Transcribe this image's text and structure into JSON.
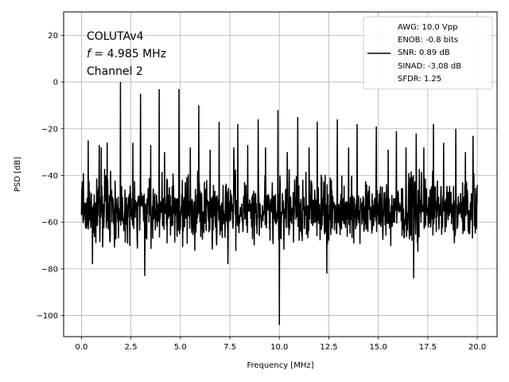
{
  "chart_data": {
    "type": "line",
    "xlabel": "Frequency [MHz]",
    "ylabel": "PSD [dB]",
    "xlim": [
      -0.9,
      21.0
    ],
    "ylim": [
      -109,
      30
    ],
    "x_ticks": [
      0.0,
      2.5,
      5.0,
      7.5,
      10.0,
      12.5,
      15.0,
      17.5,
      20.0
    ],
    "x_tick_labels": [
      "0.0",
      "2.5",
      "5.0",
      "7.5",
      "10.0",
      "12.5",
      "15.0",
      "17.5",
      "20.0"
    ],
    "y_ticks": [
      20,
      0,
      -20,
      -40,
      -60,
      -80,
      -100
    ],
    "y_tick_labels": [
      "20",
      "0",
      "−20",
      "−40",
      "−60",
      "−80",
      "−100"
    ],
    "grid": true,
    "annotation": {
      "line1": "COLUTAv4",
      "line2_var": "f",
      "line2_rest": " = 4.985 MHz",
      "line3": "Channel 2"
    },
    "legend": {
      "placement": "top-right",
      "entries": [
        "AWG: 10.0 Vpp",
        "ENOB: -0.8 bits",
        "SNR: 0.89 dB",
        "SINAD: -3.08 dB",
        "SFDR: 1.25"
      ]
    },
    "series": [
      {
        "color": "#000000",
        "noise_floor_db": -55,
        "noise_range_db": [
          -72,
          -38
        ],
        "spikes": [
          {
            "x": 0.0,
            "y": -57
          },
          {
            "x": 0.1,
            "y": -39
          },
          {
            "x": 0.2,
            "y": -61
          },
          {
            "x": 0.35,
            "y": -25
          },
          {
            "x": 0.55,
            "y": -78
          },
          {
            "x": 0.9,
            "y": -27
          },
          {
            "x": 1.0,
            "y": -28
          },
          {
            "x": 1.3,
            "y": -26
          },
          {
            "x": 1.97,
            "y": 0
          },
          {
            "x": 2.6,
            "y": -26
          },
          {
            "x": 2.98,
            "y": -5
          },
          {
            "x": 3.2,
            "y": -83
          },
          {
            "x": 3.5,
            "y": -27
          },
          {
            "x": 3.93,
            "y": -3
          },
          {
            "x": 4.2,
            "y": -30
          },
          {
            "x": 4.93,
            "y": -3
          },
          {
            "x": 5.5,
            "y": -28
          },
          {
            "x": 5.93,
            "y": -10
          },
          {
            "x": 6.5,
            "y": -29
          },
          {
            "x": 6.96,
            "y": -17
          },
          {
            "x": 7.4,
            "y": -78
          },
          {
            "x": 7.7,
            "y": -28
          },
          {
            "x": 7.9,
            "y": -18
          },
          {
            "x": 8.4,
            "y": -27
          },
          {
            "x": 8.93,
            "y": -16
          },
          {
            "x": 9.3,
            "y": -28
          },
          {
            "x": 9.93,
            "y": -12
          },
          {
            "x": 10.0,
            "y": -104
          },
          {
            "x": 10.4,
            "y": -30
          },
          {
            "x": 10.93,
            "y": -15
          },
          {
            "x": 11.5,
            "y": -28
          },
          {
            "x": 11.91,
            "y": -17
          },
          {
            "x": 12.4,
            "y": -82
          },
          {
            "x": 12.93,
            "y": -16
          },
          {
            "x": 13.5,
            "y": -28
          },
          {
            "x": 13.93,
            "y": -18
          },
          {
            "x": 14.9,
            "y": -19
          },
          {
            "x": 15.5,
            "y": -29
          },
          {
            "x": 15.92,
            "y": -21
          },
          {
            "x": 16.4,
            "y": -28
          },
          {
            "x": 16.78,
            "y": -84
          },
          {
            "x": 16.92,
            "y": -22
          },
          {
            "x": 17.3,
            "y": -28
          },
          {
            "x": 17.78,
            "y": -18
          },
          {
            "x": 18.3,
            "y": -26
          },
          {
            "x": 18.92,
            "y": -20
          },
          {
            "x": 19.4,
            "y": -30
          },
          {
            "x": 19.78,
            "y": -23
          },
          {
            "x": 20.0,
            "y": -44
          }
        ]
      }
    ]
  }
}
